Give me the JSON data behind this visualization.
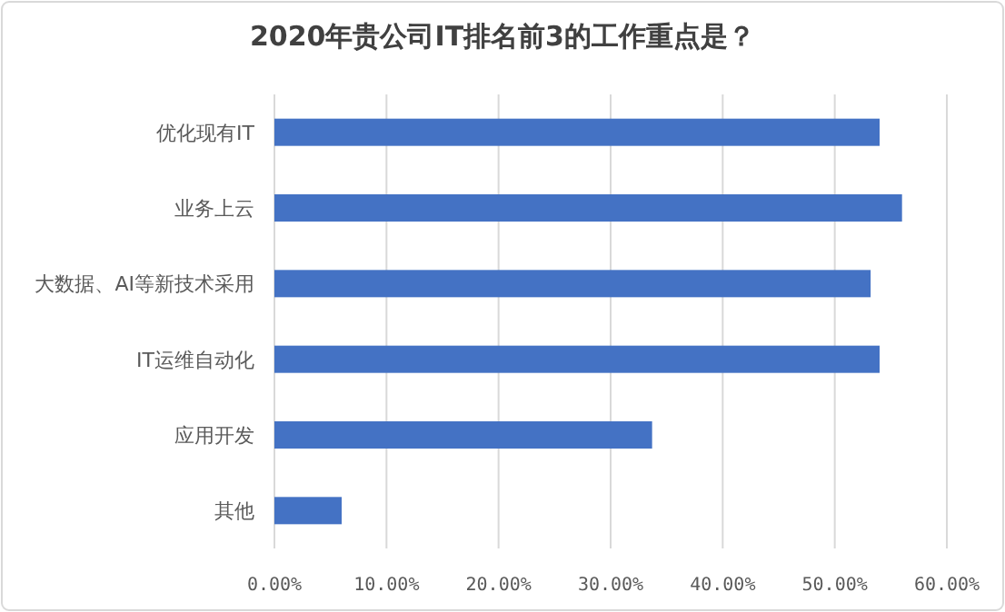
{
  "chart_data": {
    "type": "bar",
    "orientation": "horizontal",
    "title": "2020年贵公司IT排名前3的工作重点是？",
    "categories": [
      "优化现有IT",
      "业务上云",
      "大数据、AI等新技术采用",
      "IT运维自动化",
      "应用开发",
      "其他"
    ],
    "values": [
      54.0,
      56.0,
      53.2,
      54.0,
      33.7,
      6.0
    ],
    "color": "#4472c4",
    "xlim": [
      0,
      60
    ],
    "xticks": [
      {
        "value": 0,
        "label": "0.00%"
      },
      {
        "value": 10,
        "label": "10.00%"
      },
      {
        "value": 20,
        "label": "20.00%"
      },
      {
        "value": 30,
        "label": "30.00%"
      },
      {
        "value": 40,
        "label": "40.00%"
      },
      {
        "value": 50,
        "label": "50.00%"
      },
      {
        "value": 60,
        "label": "60.00%"
      }
    ],
    "grid": "x"
  }
}
